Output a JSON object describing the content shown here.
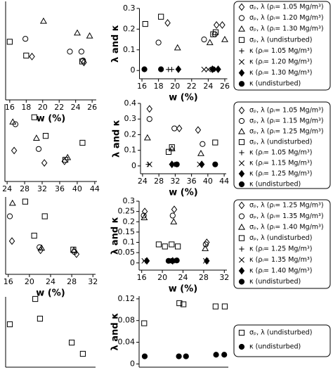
{
  "chart_data": [
    {
      "type": "scatter",
      "xlabel": "w (%)",
      "xlim": [
        15.5,
        26.5
      ],
      "ylim": [
        0,
        1
      ],
      "xticks": [
        16,
        18,
        20,
        22,
        24,
        26
      ],
      "series": [
        {
          "marker": "diamond",
          "color": "#000",
          "x": [
            18.7,
            25.0
          ],
          "values": [
            0.44,
            0.38
          ]
        },
        {
          "marker": "circle",
          "color": "#000",
          "x": [
            17.9,
            23.3,
            24.7,
            24.9
          ],
          "values": [
            0.62,
            0.49,
            0.49,
            0.4
          ]
        },
        {
          "marker": "triangle",
          "color": "#000",
          "x": [
            20.1,
            24.2,
            25.7
          ],
          "values": [
            0.8,
            0.68,
            0.65
          ]
        },
        {
          "marker": "square",
          "color": "#000",
          "x": [
            16.0,
            18.0,
            24.8
          ],
          "values": [
            0.59,
            0.45,
            0.39
          ]
        }
      ]
    },
    {
      "type": "scatter",
      "xlabel": "w (%)",
      "ylabel": "λ and κ",
      "xlim": [
        15.7,
        26.3
      ],
      "ylim": [
        -0.04,
        0.3
      ],
      "xticks": [
        16,
        18,
        20,
        22,
        24,
        26
      ],
      "yticks": [
        0,
        0.1,
        0.2,
        0.3
      ],
      "series": [
        {
          "name": "σₚ, λ (ρᵢ= 1.05 Mg/m³)",
          "marker": "diamond",
          "color": "#000",
          "x": [
            19.1,
            25.0,
            25.7
          ],
          "values": [
            0.23,
            0.22,
            0.22
          ]
        },
        {
          "name": "σₚ, λ (ρᵢ= 1.20 Mg/m³)",
          "marker": "circle",
          "color": "#000",
          "x": [
            18.0,
            23.5,
            24.8
          ],
          "values": [
            0.135,
            0.15,
            0.175
          ]
        },
        {
          "name": "σₚ, λ (ρᵢ= 1.30 Mg/m³)",
          "marker": "triangle",
          "color": "#000",
          "x": [
            20.3,
            24.2,
            26.0
          ],
          "values": [
            0.11,
            0.135,
            0.15
          ]
        },
        {
          "name": "σₚ, λ (undisturbed)",
          "marker": "square",
          "color": "#000",
          "x": [
            16.4,
            18.3,
            24.6,
            24.9
          ],
          "values": [
            0.225,
            0.26,
            0.175,
            0.185
          ]
        },
        {
          "name": "κ (ρᵢ= 1.05 Mg/m³)",
          "marker": "plus",
          "color": "#000",
          "x": [
            19.2,
            19.6
          ],
          "values": [
            0.005,
            0.005
          ]
        },
        {
          "name": "κ (ρᵢ= 1.20 Mg/m³)",
          "marker": "cross",
          "color": "#000",
          "x": [
            23.5,
            24.0
          ],
          "values": [
            0.005,
            0.005
          ]
        },
        {
          "name": "κ (ρᵢ= 1.30 Mg/m³)",
          "marker": "diamond-filled",
          "color": "#000",
          "x": [
            20.4,
            24.5,
            25.2
          ],
          "values": [
            0.006,
            0.006,
            0.006
          ]
        },
        {
          "name": "κ (undisturbed)",
          "marker": "circle-filled",
          "color": "#000",
          "x": [
            16.3,
            18.3,
            24.6
          ],
          "values": [
            0.006,
            0.006,
            0.006
          ]
        }
      ]
    },
    {
      "type": "scatter",
      "xlim": [
        23.5,
        44.5
      ],
      "ylim": [
        0,
        1
      ],
      "xticks": [
        24,
        28,
        32,
        36,
        40,
        44
      ],
      "series": [
        {
          "marker": "diamond",
          "color": "#000",
          "x": [
            25.6,
            32.5,
            37.1
          ],
          "values": [
            0.4,
            0.24,
            0.26
          ]
        },
        {
          "marker": "circle",
          "color": "#000",
          "x": [
            25.9,
            31.2
          ],
          "values": [
            0.74,
            0.42
          ]
        },
        {
          "marker": "triangle",
          "color": "#000",
          "x": [
            25.3,
            30.7,
            37.8
          ],
          "values": [
            0.77,
            0.56,
            0.31
          ]
        },
        {
          "marker": "square",
          "color": "#000",
          "x": [
            30.2,
            32.8,
            37.3,
            41.2
          ],
          "values": [
            0.83,
            0.59,
            0.28,
            0.5
          ]
        }
      ]
    },
    {
      "type": "scatter",
      "xlabel": "w (%)",
      "ylabel": "λ and κ",
      "xlim": [
        23.5,
        44.5
      ],
      "ylim": [
        -0.05,
        0.4
      ],
      "xticks": [
        24,
        28,
        32,
        36,
        40,
        44
      ],
      "yticks": [
        0,
        0.1,
        0.2,
        0.3,
        0.4
      ],
      "series": [
        {
          "name": "σₚ, λ (ρᵢ= 1.05 Mg/m³)",
          "marker": "diamond",
          "color": "#000",
          "x": [
            25.7,
            33.0,
            37.6
          ],
          "values": [
            0.365,
            0.24,
            0.23
          ]
        },
        {
          "name": "σₚ, λ (ρᵢ= 1.15 Mg/m³)",
          "marker": "circle",
          "color": "#000",
          "x": [
            25.7,
            31.8,
            38.7
          ],
          "values": [
            0.3,
            0.24,
            0.14
          ]
        },
        {
          "name": "σₚ, λ (ρᵢ= 1.25 Mg/m³)",
          "marker": "triangle",
          "color": "#000",
          "x": [
            25.2,
            31.2,
            38.3
          ],
          "values": [
            0.18,
            0.11,
            0.08
          ]
        },
        {
          "name": "σₚ, λ (undisturbed)",
          "marker": "square",
          "color": "#000",
          "x": [
            30.4,
            31.2,
            41.8
          ],
          "values": [
            0.09,
            0.12,
            0.15
          ]
        },
        {
          "name": "κ (ρᵢ= 1.05 Mg/m³)",
          "marker": "plus",
          "color": "#000",
          "x": [
            25.4,
            31.8
          ],
          "values": [
            0.01,
            0.01
          ]
        },
        {
          "name": "κ (ρᵢ= 1.15 Mg/m³)",
          "marker": "cross",
          "color": "#000",
          "x": [
            25.7,
            38.0
          ],
          "values": [
            0.01,
            0.01
          ]
        },
        {
          "name": "κ (ρᵢ= 1.25 Mg/m³)",
          "marker": "diamond-filled",
          "color": "#000",
          "x": [
            31.2,
            38.5
          ],
          "values": [
            0.01,
            0.01
          ]
        },
        {
          "name": "κ (undisturbed)",
          "marker": "circle-filled",
          "color": "#000",
          "x": [
            32.4,
            41.8
          ],
          "values": [
            0.01,
            0.01
          ]
        }
      ]
    },
    {
      "type": "scatter",
      "xlabel": "w (%)",
      "xlim": [
        15.5,
        32.5
      ],
      "ylim": [
        0,
        1
      ],
      "xticks": [
        16,
        20,
        24,
        28,
        32
      ],
      "series": [
        {
          "marker": "diamond",
          "color": "#000",
          "x": [
            16.7,
            22.1,
            28.9
          ],
          "values": [
            0.43,
            0.31,
            0.26
          ]
        },
        {
          "marker": "circle",
          "color": "#000",
          "x": [
            16.3,
            21.9,
            28.5
          ],
          "values": [
            0.75,
            0.35,
            0.29
          ]
        },
        {
          "marker": "triangle",
          "color": "#000",
          "x": [
            16.8,
            22.3,
            28.4
          ],
          "values": [
            0.92,
            0.34,
            0.31
          ]
        },
        {
          "marker": "square",
          "color": "#000",
          "x": [
            19.2,
            20.9,
            22.9,
            28.3
          ],
          "values": [
            0.94,
            0.5,
            0.75,
            0.32
          ]
        }
      ]
    },
    {
      "type": "scatter",
      "xlabel": "w (%)",
      "ylabel": "λ and κ",
      "xlim": [
        15.5,
        32.5
      ],
      "ylim": [
        -0.035,
        0.3
      ],
      "xticks": [
        16,
        20,
        24,
        28,
        32
      ],
      "yticks": [
        0,
        0.05,
        0.1,
        0.15,
        0.2,
        0.25,
        0.3
      ],
      "series": [
        {
          "name": "σₚ, λ (ρᵢ= 1.25 Mg/m³)",
          "marker": "diamond",
          "color": "#000",
          "x": [
            16.6,
            22.3,
            28.6
          ],
          "values": [
            0.25,
            0.26,
            0.1
          ]
        },
        {
          "name": "σₚ, λ (ρᵢ= 1.35 Mg/m³)",
          "marker": "circle",
          "color": "#000",
          "x": [
            16.4,
            22.0,
            28.4
          ],
          "values": [
            0.23,
            0.23,
            0.09
          ]
        },
        {
          "name": "σₚ, λ (ρᵢ= 1.40 Mg/m³)",
          "marker": "triangle",
          "color": "#000",
          "x": [
            16.5,
            22.2,
            28.3
          ],
          "values": [
            0.22,
            0.2,
            0.07
          ]
        },
        {
          "name": "σₚ, λ (undisturbed)",
          "marker": "square",
          "color": "#000",
          "x": [
            19.3,
            20.5,
            21.8,
            23.0
          ],
          "values": [
            0.09,
            0.08,
            0.09,
            0.08
          ]
        },
        {
          "name": "κ (ρᵢ= 1.25 Mg/m³)",
          "marker": "plus",
          "color": "#000",
          "x": [
            16.7,
            22.4
          ],
          "values": [
            0.01,
            0.01
          ]
        },
        {
          "name": "κ (ρᵢ= 1.35 Mg/m³)",
          "marker": "cross",
          "color": "#000",
          "x": [
            16.5,
            28.4
          ],
          "values": [
            0.01,
            0.01
          ]
        },
        {
          "name": "κ (ρᵢ= 1.40 Mg/m³)",
          "marker": "diamond-filled",
          "color": "#000",
          "x": [
            17.0,
            22.0,
            28.6
          ],
          "values": [
            0.01,
            0.01,
            0.01
          ]
        },
        {
          "name": "κ (undisturbed)",
          "marker": "circle-filled",
          "color": "#000",
          "x": [
            21.2,
            21.9,
            22.8
          ],
          "values": [
            0.01,
            0.01,
            0.012
          ]
        }
      ]
    },
    {
      "type": "scatter",
      "xlim": [
        15.5,
        32.5
      ],
      "ylim": [
        0,
        1
      ],
      "series": [
        {
          "marker": "square",
          "color": "#000",
          "x": [
            16.3,
            21.1,
            22.0,
            28.0,
            30.1
          ],
          "values": [
            0.61,
            0.97,
            0.69,
            0.35,
            0.19
          ]
        }
      ]
    },
    {
      "type": "scatter",
      "ylabel": "λ and κ",
      "xlim": [
        15.5,
        33
      ],
      "ylim": [
        -0.006,
        0.125
      ],
      "yticks": [
        0,
        0.04,
        0.08,
        0.12
      ],
      "series": [
        {
          "name": "σₚ, λ (undisturbed)",
          "marker": "square",
          "color": "#000",
          "x": [
            16.5,
            23.4,
            24.2,
            30.5,
            32.3
          ],
          "values": [
            0.075,
            0.112,
            0.11,
            0.106,
            0.106
          ]
        },
        {
          "name": "κ (undisturbed)",
          "marker": "circle-filled",
          "color": "#000",
          "x": [
            16.6,
            23.3,
            24.7,
            30.6,
            32.2
          ],
          "values": [
            0.014,
            0.014,
            0.014,
            0.017,
            0.017
          ]
        }
      ]
    }
  ]
}
